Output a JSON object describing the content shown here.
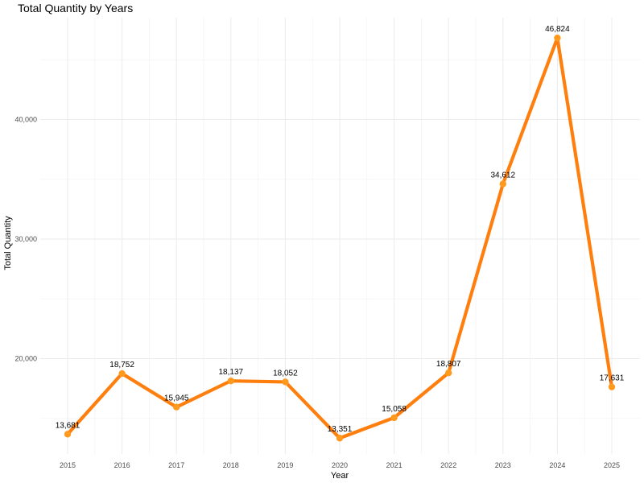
{
  "chart_data": {
    "type": "line",
    "title": "Total Quantity by Years",
    "xlabel": "Year",
    "ylabel": "Total Quantity",
    "categories": [
      "2015",
      "2016",
      "2017",
      "2018",
      "2019",
      "2020",
      "2021",
      "2022",
      "2023",
      "2024",
      "2025"
    ],
    "series": [
      {
        "values": [
          13681,
          18752,
          15945,
          18137,
          18052,
          13351,
          15058,
          18807,
          34612,
          46824,
          17631
        ],
        "labels": [
          "13,681",
          "18,752",
          "15,945",
          "18,137",
          "18,052",
          "13,351",
          "15,058",
          "18,807",
          "34,612",
          "46,824",
          "17,631"
        ]
      }
    ],
    "yticks": [
      20000,
      30000,
      40000
    ],
    "ytick_labels": [
      "20,000",
      "30,000",
      "40,000"
    ],
    "ylim": [
      12000,
      48800
    ],
    "grid": true,
    "legend": "none",
    "line_color": "#FF7F0E",
    "point_color": "#FF9A1E"
  }
}
